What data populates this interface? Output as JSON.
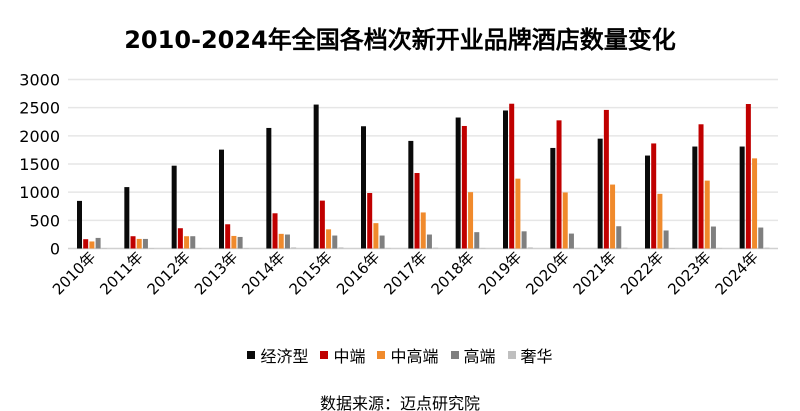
{
  "chart_data": {
    "type": "bar",
    "title": "2010-2024年全国各档次新开业品牌酒店数量变化",
    "categories": [
      "2010年",
      "2011年",
      "2012年",
      "2013年",
      "2014年",
      "2015年",
      "2016年",
      "2017年",
      "2018年",
      "2019年",
      "2020年",
      "2021年",
      "2022年",
      "2023年",
      "2024年"
    ],
    "series": [
      {
        "name": "经济型",
        "color": "#0a0a0a",
        "values": [
          845,
          1090,
          1470,
          1755,
          2140,
          2555,
          2170,
          1910,
          2325,
          2450,
          1785,
          1950,
          1650,
          1810,
          1810
        ]
      },
      {
        "name": "中端",
        "color": "#c00000",
        "values": [
          165,
          218,
          360,
          430,
          625,
          850,
          985,
          1340,
          2175,
          2570,
          2275,
          2460,
          1865,
          2205,
          2565
        ]
      },
      {
        "name": "中高端",
        "color": "#f08a2c",
        "values": [
          125,
          170,
          218,
          223,
          260,
          340,
          450,
          640,
          1000,
          1240,
          995,
          1135,
          970,
          1205,
          1600
        ]
      },
      {
        "name": "高端",
        "color": "#7f7f7f",
        "values": [
          188,
          170,
          218,
          205,
          248,
          230,
          230,
          248,
          290,
          305,
          265,
          395,
          320,
          390,
          372
        ]
      },
      {
        "name": "奢华",
        "color": "#bfbfbf",
        "values": [
          5,
          5,
          5,
          5,
          20,
          20,
          10,
          15,
          10,
          20,
          10,
          15,
          5,
          10,
          15
        ]
      }
    ],
    "yticks": [
      "0",
      "500",
      "1000",
      "1500",
      "2000",
      "2500",
      "3000"
    ],
    "ylim": [
      0,
      3000
    ],
    "grid": true,
    "legend": "bottom"
  },
  "source": "数据来源：迈点研究院"
}
